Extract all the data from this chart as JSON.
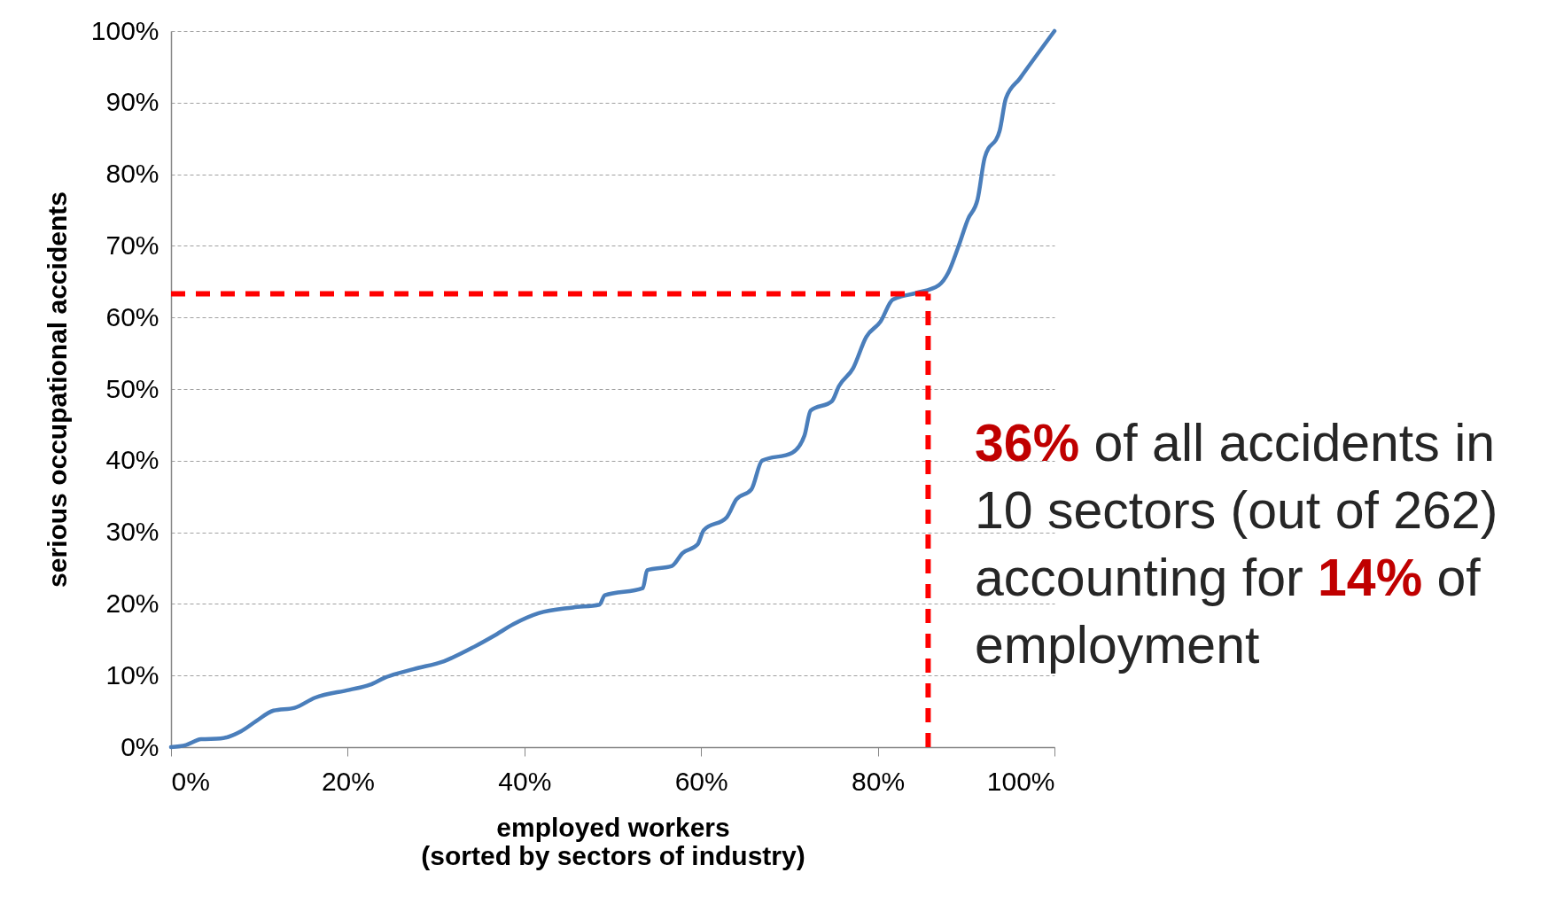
{
  "chart_data": {
    "type": "line",
    "xlabel": "employed workers\n(sorted by sectors of industry)",
    "ylabel": "serious occupational accidents",
    "x": [
      0,
      1.7,
      3.4,
      5.6,
      7.9,
      9.6,
      11.6,
      14,
      16.3,
      20.2,
      22.5,
      24.2,
      27.5,
      30.9,
      34.3,
      36.5,
      38.8,
      41.6,
      45.5,
      48.5,
      49.1,
      53.4,
      53.9,
      56.7,
      57.9,
      59.6,
      60.3,
      62.9,
      64,
      65.7,
      66.9,
      70.3,
      71.7,
      72.4,
      74.8,
      75.6,
      77.2,
      78.7,
      80.3,
      81.7,
      84.3,
      86.9,
      88,
      89.1,
      90.2,
      91.3,
      92.1,
      93.8,
      94.5,
      96.1,
      100
    ],
    "series": [
      {
        "color": "#4a7ebb",
        "values": [
          0,
          0.3,
          1.1,
          1.2,
          2.2,
          3.6,
          5.1,
          5.5,
          6.9,
          8,
          8.7,
          9.7,
          10.9,
          12,
          14,
          15.5,
          17.2,
          18.7,
          19.5,
          19.9,
          21.2,
          22.2,
          24.7,
          25.3,
          27.1,
          28.3,
          30.3,
          32.1,
          34.6,
          36,
          40,
          41.1,
          43.5,
          47,
          48.3,
          50.4,
          52.9,
          57.3,
          59.4,
          62.5,
          63.4,
          64.5,
          66.3,
          69.8,
          73.7,
          76.5,
          82.3,
          86.1,
          90.6,
          93.4,
          100
        ]
      }
    ],
    "xlim": [
      0,
      100
    ],
    "ylim": [
      0,
      100
    ],
    "xticks": [
      {
        "value": 0,
        "label": "0%"
      },
      {
        "value": 20,
        "label": "20%"
      },
      {
        "value": 40,
        "label": "40%"
      },
      {
        "value": 60,
        "label": "60%"
      },
      {
        "value": 80,
        "label": "80%"
      },
      {
        "value": 100,
        "label": "100%"
      }
    ],
    "yticks": [
      {
        "value": 0,
        "label": "0%"
      },
      {
        "value": 10,
        "label": "10%"
      },
      {
        "value": 20,
        "label": "20%"
      },
      {
        "value": 30,
        "label": "30%"
      },
      {
        "value": 40,
        "label": "40%"
      },
      {
        "value": 50,
        "label": "50%"
      },
      {
        "value": 60,
        "label": "60%"
      },
      {
        "value": 70,
        "label": "70%"
      },
      {
        "value": 80,
        "label": "80%"
      },
      {
        "value": 90,
        "label": "90%"
      },
      {
        "value": 100,
        "label": "100%"
      }
    ],
    "grid": "y",
    "ref_lines": [
      {
        "axis": "y",
        "value": 63.3,
        "color": "#ff0000",
        "line_style": "dashed"
      },
      {
        "axis": "x",
        "value": 85.7,
        "color": "#ff0000",
        "line_style": "dashed"
      }
    ],
    "annotations": [
      "36% of all accidents in 10 sectors (out of 262) accounting for 14% of employment"
    ]
  }
}
